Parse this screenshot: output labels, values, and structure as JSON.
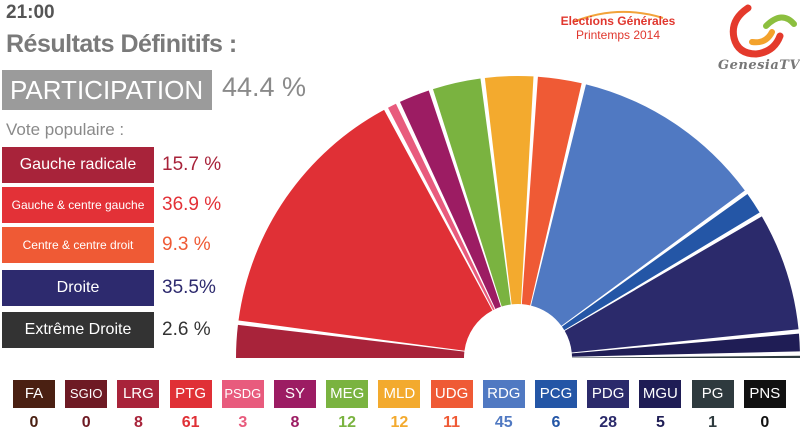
{
  "header": {
    "time": "21:00",
    "title": "Résultats Définitifs :",
    "participation_label": "PARTICIPATION",
    "participation_value": "44.4 %"
  },
  "event": {
    "line1": "Elections Générales",
    "line2": "Printemps 2014"
  },
  "brand": {
    "name": "GenesiaTV"
  },
  "vote": {
    "label": "Vote populaire :",
    "items": [
      {
        "name": "Gauche radicale",
        "value": "15.7 %",
        "color": "#a8233a",
        "text_color": "#a8233a"
      },
      {
        "name": "Gauche & centre gauche",
        "value": "36.9 %",
        "color": "#e33137",
        "text_color": "#e33137"
      },
      {
        "name": "Centre & centre droit",
        "value": "9.3 %",
        "color": "#ef5a35",
        "text_color": "#ef5a35"
      },
      {
        "name": "Droite",
        "value": "35.5%",
        "color": "#2d2a6e",
        "text_color": "#2d2a6e"
      },
      {
        "name": "Extrême Droite",
        "value": "2.6 %",
        "color": "#333333",
        "text_color": "#333333"
      }
    ]
  },
  "chart_data": {
    "type": "pie",
    "subtype": "parliament-hemicycle",
    "total_seats": 200,
    "parties": [
      {
        "code": "FA",
        "seats": 0,
        "color": "#4a2012"
      },
      {
        "code": "SGIO",
        "seats": 0,
        "color": "#6e1a24"
      },
      {
        "code": "LRG",
        "seats": 8,
        "color": "#a8233a"
      },
      {
        "code": "PTG",
        "seats": 61,
        "color": "#e03036"
      },
      {
        "code": "PSDG",
        "seats": 3,
        "color": "#e85b7d"
      },
      {
        "code": "SY",
        "seats": 8,
        "color": "#9c1c63"
      },
      {
        "code": "MEG",
        "seats": 12,
        "color": "#7ab340"
      },
      {
        "code": "MLD",
        "seats": 12,
        "color": "#f3aa2e"
      },
      {
        "code": "UDG",
        "seats": 11,
        "color": "#ef5a35"
      },
      {
        "code": "RDG",
        "seats": 45,
        "color": "#5079c2"
      },
      {
        "code": "PCG",
        "seats": 6,
        "color": "#2456a6"
      },
      {
        "code": "PDG",
        "seats": 28,
        "color": "#2b2a6b"
      },
      {
        "code": "MGU",
        "seats": 5,
        "color": "#1f1d55"
      },
      {
        "code": "PG",
        "seats": 1,
        "color": "#2e3a3e"
      },
      {
        "code": "PNS",
        "seats": 0,
        "color": "#111111"
      }
    ]
  }
}
